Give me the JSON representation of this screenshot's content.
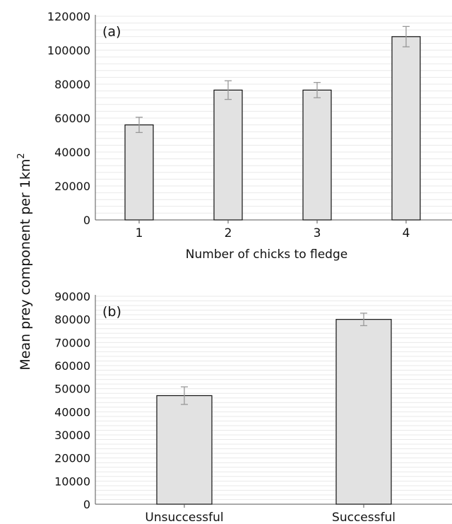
{
  "shared_ylabel": "Mean prey component  per 1km",
  "shared_ylabel_superscript": "2",
  "chart_data": [
    {
      "type": "bar",
      "panel_label": "(a)",
      "categories": [
        "1",
        "2",
        "3",
        "4"
      ],
      "values": [
        56000,
        76500,
        76500,
        108000
      ],
      "error": [
        4500,
        5500,
        4500,
        6000
      ],
      "xlabel": "Number of chicks to fledge",
      "ylabel": "Mean prey component per 1km2",
      "ylim": [
        0,
        120000
      ],
      "yticks": [
        0,
        20000,
        40000,
        60000,
        80000,
        100000,
        120000
      ],
      "bar_fill": "#e2e2e2",
      "grid": true
    },
    {
      "type": "bar",
      "panel_label": "(b)",
      "categories": [
        "Unsuccessful",
        "Successful"
      ],
      "values": [
        47000,
        80000
      ],
      "error": [
        3800,
        2700
      ],
      "xlabel": "",
      "ylabel": "Mean prey component per 1km2",
      "ylim": [
        0,
        90000
      ],
      "yticks": [
        0,
        10000,
        20000,
        30000,
        40000,
        50000,
        60000,
        70000,
        80000,
        90000
      ],
      "bar_fill": "#e2e2e2",
      "grid": true
    }
  ]
}
